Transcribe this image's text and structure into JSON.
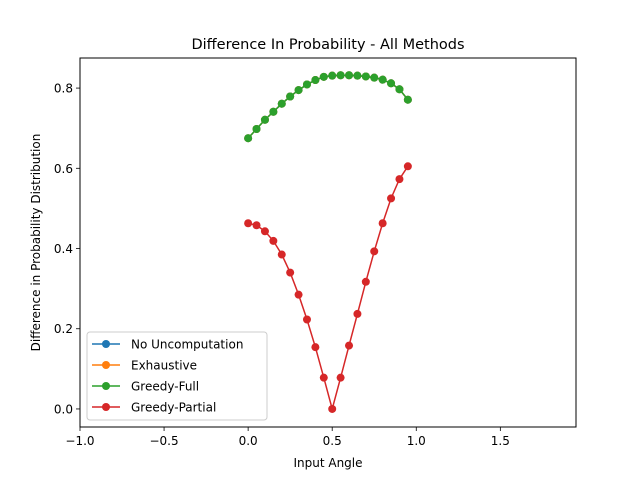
{
  "chart_data": {
    "type": "line",
    "title": "Difference In Probability - All Methods",
    "xlabel": "Input Angle",
    "ylabel": "Difference in Probability Distribution",
    "xlim": [
      -1.0,
      1.95
    ],
    "ylim": [
      -0.045,
      0.875
    ],
    "xticks": [
      -1.0,
      -0.5,
      0.0,
      0.5,
      1.0,
      1.5
    ],
    "xtick_labels": [
      "−1.0",
      "−0.5",
      "0.0",
      "0.5",
      "1.0",
      "1.5"
    ],
    "yticks": [
      0.0,
      0.2,
      0.4,
      0.6,
      0.8
    ],
    "ytick_labels": [
      "0.0",
      "0.2",
      "0.4",
      "0.6",
      "0.8"
    ],
    "grid": false,
    "legend_position": "lower-left",
    "x": [
      0.0,
      0.05,
      0.1,
      0.15,
      0.2,
      0.25,
      0.3,
      0.35,
      0.4,
      0.45,
      0.5,
      0.55,
      0.6,
      0.65,
      0.7,
      0.75,
      0.8,
      0.85,
      0.9,
      0.95
    ],
    "series": [
      {
        "name": "No Uncomputation",
        "color": "#1f77b4",
        "values": [
          0.675,
          0.698,
          0.721,
          0.741,
          0.761,
          0.779,
          0.795,
          0.809,
          0.82,
          0.828,
          0.831,
          0.832,
          0.832,
          0.831,
          0.829,
          0.826,
          0.821,
          0.812,
          0.797,
          0.771
        ]
      },
      {
        "name": "Exhaustive",
        "color": "#ff7f0e",
        "values": [
          0.675,
          0.698,
          0.721,
          0.741,
          0.761,
          0.779,
          0.795,
          0.809,
          0.82,
          0.828,
          0.831,
          0.832,
          0.832,
          0.831,
          0.829,
          0.826,
          0.821,
          0.812,
          0.797,
          0.771
        ]
      },
      {
        "name": "Greedy-Full",
        "color": "#2ca02c",
        "values": [
          0.675,
          0.698,
          0.721,
          0.741,
          0.761,
          0.779,
          0.795,
          0.809,
          0.82,
          0.828,
          0.831,
          0.832,
          0.832,
          0.831,
          0.829,
          0.826,
          0.821,
          0.812,
          0.797,
          0.771
        ]
      },
      {
        "name": "Greedy-Partial",
        "color": "#d62728",
        "values": [
          0.463,
          0.458,
          0.443,
          0.419,
          0.385,
          0.34,
          0.285,
          0.223,
          0.154,
          0.078,
          0.0,
          0.078,
          0.158,
          0.237,
          0.317,
          0.393,
          0.463,
          0.525,
          0.573,
          0.605
        ]
      }
    ]
  }
}
